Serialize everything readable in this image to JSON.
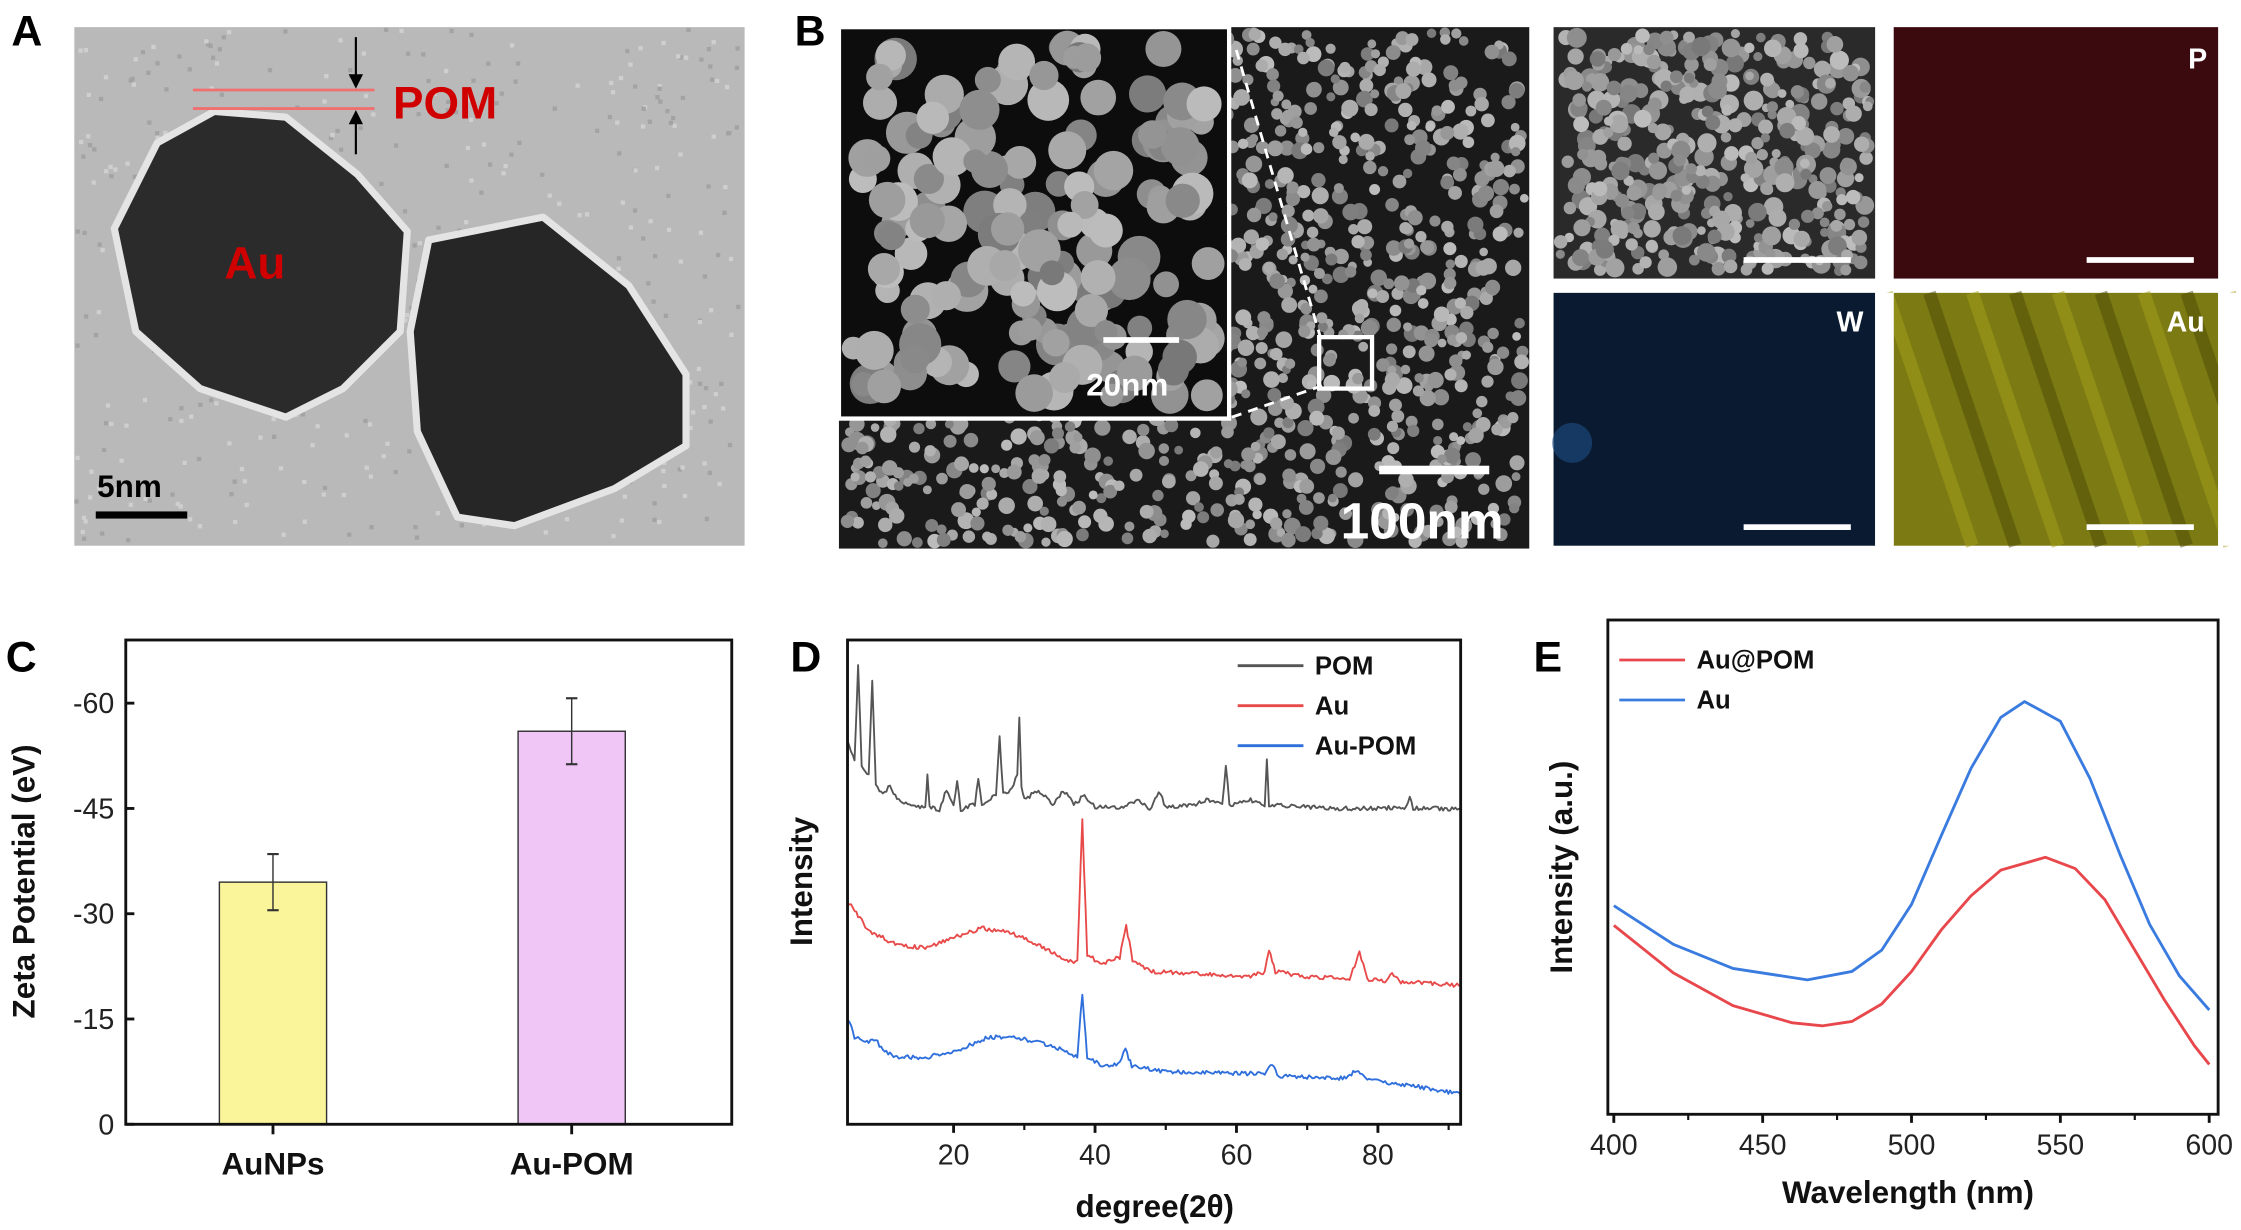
{
  "panels": {
    "A": {
      "label": "A",
      "shell_label": "POM",
      "core_label": "Au",
      "scale_bar": "5nm",
      "accent": "#d00000"
    },
    "B": {
      "label": "B",
      "inset_scale": "20nm",
      "main_scale": "100nm",
      "maps": [
        {
          "element": "P",
          "color": "#3a0a0e"
        },
        {
          "element": "W",
          "color": "#0a1a30"
        },
        {
          "element": "Au",
          "color": "#7c7a12"
        }
      ]
    }
  },
  "chart_data": [
    {
      "panel": "C",
      "type": "bar",
      "categories": [
        "AuNPs",
        "Au-POM"
      ],
      "values": [
        -34.5,
        -56.0
      ],
      "errors": [
        4.0,
        4.7
      ],
      "colors": [
        "#faf59a",
        "#f0c6f7"
      ],
      "xlabel": "",
      "ylabel": "Zeta Potential (eV)",
      "ylim": [
        0,
        -69
      ],
      "yticks": [
        0,
        -15,
        -30,
        -45,
        -60
      ],
      "ytick_labels": [
        "0",
        "-15",
        "-30",
        "-45",
        "-60"
      ]
    },
    {
      "panel": "D",
      "type": "line",
      "xlabel": "degree(2θ)",
      "ylabel": "Intensity",
      "xlim": [
        5,
        91.7
      ],
      "ylim": [
        0,
        100
      ],
      "xticks": [
        20,
        40,
        60,
        80
      ],
      "xtick_labels": [
        "20",
        "40",
        "60",
        "80"
      ],
      "legend": "top-right",
      "series": [
        {
          "name": "POM",
          "color": "#555555",
          "points": [
            [
              5,
              79
            ],
            [
              6,
              75
            ],
            [
              6.5,
              95
            ],
            [
              7,
              74
            ],
            [
              8,
              72
            ],
            [
              8.5,
              92
            ],
            [
              9,
              70
            ],
            [
              10,
              68
            ],
            [
              11,
              70
            ],
            [
              12,
              67
            ],
            [
              14,
              66
            ],
            [
              16,
              65.5
            ],
            [
              16.3,
              72
            ],
            [
              16.6,
              65.5
            ],
            [
              18,
              65
            ],
            [
              19,
              69
            ],
            [
              20,
              66
            ],
            [
              20.5,
              71
            ],
            [
              21,
              65
            ],
            [
              23,
              66
            ],
            [
              23.5,
              71
            ],
            [
              24,
              66
            ],
            [
              26,
              68
            ],
            [
              26.5,
              80
            ],
            [
              27,
              68
            ],
            [
              28,
              69
            ],
            [
              29,
              72
            ],
            [
              29.3,
              84
            ],
            [
              29.6,
              70
            ],
            [
              30,
              67
            ],
            [
              32,
              69
            ],
            [
              34,
              66
            ],
            [
              35.5,
              69
            ],
            [
              37,
              66
            ],
            [
              38.5,
              68
            ],
            [
              40,
              65.5
            ],
            [
              44,
              65.5
            ],
            [
              46,
              67
            ],
            [
              48,
              65
            ],
            [
              49,
              69
            ],
            [
              50,
              65.5
            ],
            [
              54,
              66
            ],
            [
              56,
              67
            ],
            [
              58,
              66
            ],
            [
              58.5,
              74
            ],
            [
              59,
              66
            ],
            [
              62,
              67
            ],
            [
              64,
              66
            ],
            [
              64.3,
              75
            ],
            [
              64.6,
              66
            ],
            [
              68,
              65.6
            ],
            [
              75,
              65.2
            ],
            [
              80,
              65.3
            ],
            [
              84,
              65.5
            ],
            [
              84.5,
              68
            ],
            [
              85,
              65.3
            ],
            [
              91.7,
              65.1
            ]
          ]
        },
        {
          "name": "Au",
          "color": "#e84a4a",
          "points": [
            [
              5,
              46
            ],
            [
              8,
              40
            ],
            [
              12,
              37
            ],
            [
              16,
              36.5
            ],
            [
              20,
              38.5
            ],
            [
              24,
              40.5
            ],
            [
              28,
              39.5
            ],
            [
              32,
              37
            ],
            [
              36,
              34
            ],
            [
              37.5,
              33.5
            ],
            [
              38.2,
              63
            ],
            [
              38.9,
              35
            ],
            [
              41,
              33
            ],
            [
              43.5,
              34.5
            ],
            [
              44.4,
              41
            ],
            [
              45.3,
              34
            ],
            [
              48,
              31.5
            ],
            [
              55,
              31
            ],
            [
              62,
              30.5
            ],
            [
              64,
              31.5
            ],
            [
              64.6,
              36
            ],
            [
              65.5,
              31.5
            ],
            [
              70,
              30.5
            ],
            [
              76,
              30
            ],
            [
              77.4,
              35.5
            ],
            [
              78.5,
              30
            ],
            [
              81,
              29.5
            ],
            [
              82,
              31
            ],
            [
              83,
              29.5
            ],
            [
              91.7,
              28.7
            ]
          ]
        },
        {
          "name": "Au-POM",
          "color": "#2f6fdc",
          "points": [
            [
              5,
              22
            ],
            [
              6,
              18
            ],
            [
              7.5,
              17
            ],
            [
              9,
              17.5
            ],
            [
              10,
              15
            ],
            [
              12,
              14
            ],
            [
              16,
              13.8
            ],
            [
              20,
              15
            ],
            [
              25,
              18
            ],
            [
              28,
              18
            ],
            [
              32,
              17
            ],
            [
              36,
              15
            ],
            [
              37.5,
              14
            ],
            [
              38.2,
              27
            ],
            [
              38.9,
              14
            ],
            [
              41,
              12
            ],
            [
              43.5,
              12.5
            ],
            [
              44.3,
              15.5
            ],
            [
              45.2,
              12
            ],
            [
              50,
              10.8
            ],
            [
              60,
              10.5
            ],
            [
              64,
              10.5
            ],
            [
              64.8,
              12.5
            ],
            [
              66,
              10
            ],
            [
              75,
              9.5
            ],
            [
              77,
              11
            ],
            [
              79,
              9
            ],
            [
              85,
              8
            ],
            [
              91.7,
              6.2
            ]
          ]
        }
      ]
    },
    {
      "panel": "E",
      "type": "line",
      "xlabel": "Wavelength (nm)",
      "ylabel": "Intensity (a.u.)",
      "xlim": [
        398,
        603
      ],
      "ylim": [
        0,
        100
      ],
      "xticks": [
        400,
        450,
        500,
        550,
        600
      ],
      "xtick_labels": [
        "400",
        "450",
        "500",
        "550",
        "600"
      ],
      "legend": "top-left",
      "series": [
        {
          "name": "Au@POM",
          "color": "#e8474c",
          "points": [
            [
              400,
              38.2
            ],
            [
              420,
              28.6
            ],
            [
              440,
              22
            ],
            [
              460,
              18.5
            ],
            [
              470,
              17.9
            ],
            [
              480,
              18.8
            ],
            [
              490,
              22.3
            ],
            [
              500,
              28.9
            ],
            [
              510,
              37.3
            ],
            [
              520,
              44.2
            ],
            [
              530,
              49.4
            ],
            [
              545,
              52
            ],
            [
              555,
              49.7
            ],
            [
              565,
              43.4
            ],
            [
              575,
              33.2
            ],
            [
              585,
              23.1
            ],
            [
              595,
              13.9
            ],
            [
              600,
              10.1
            ]
          ]
        },
        {
          "name": "Au",
          "color": "#3a7be0",
          "points": [
            [
              400,
              42.2
            ],
            [
              420,
              34.4
            ],
            [
              440,
              29.5
            ],
            [
              465,
              27.2
            ],
            [
              480,
              28.9
            ],
            [
              490,
              33.2
            ],
            [
              500,
              42.5
            ],
            [
              510,
              56.4
            ],
            [
              520,
              70
            ],
            [
              530,
              80.3
            ],
            [
              538,
              83.5
            ],
            [
              550,
              79.5
            ],
            [
              560,
              67.9
            ],
            [
              570,
              52.6
            ],
            [
              580,
              38.4
            ],
            [
              590,
              28
            ],
            [
              600,
              21.1
            ]
          ]
        }
      ]
    }
  ]
}
